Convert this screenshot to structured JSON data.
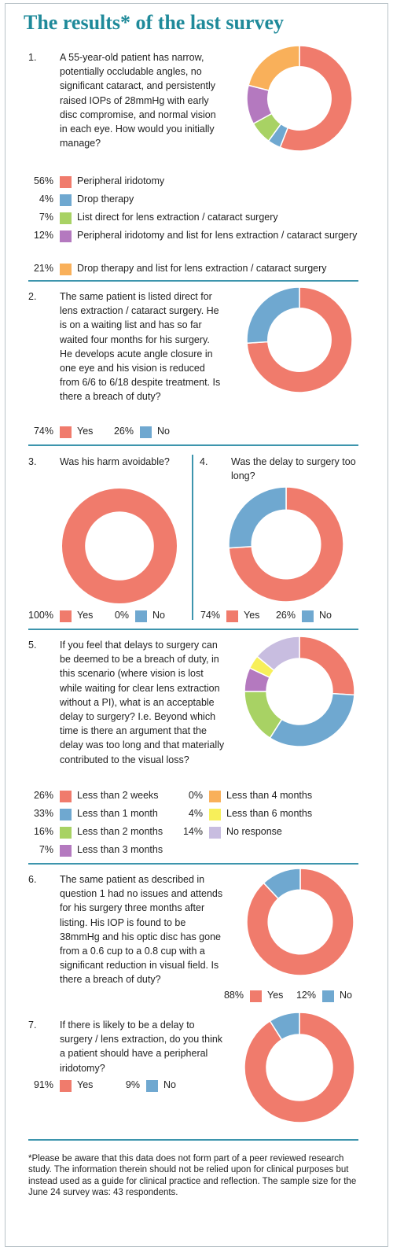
{
  "title": "The results* of the last survey",
  "colors": {
    "red": "#f07b6c",
    "blue": "#6fa8d0",
    "green": "#a8d264",
    "purple": "#b479bf",
    "orange": "#f9b05a",
    "yellow": "#f7ef5a",
    "lavender": "#c8bde0",
    "rule": "#3d95ad"
  },
  "questions": {
    "q1": {
      "num": "1.",
      "text": "A 55-year-old patient has narrow, potentially occludable angles, no significant cataract, and persistently raised IOPs of 28mmHg with early disc compromise, and normal vision in each eye. How would you initially manage?"
    },
    "q2": {
      "num": "2.",
      "text": "The same patient is listed direct for lens extraction / cataract surgery. He is on a waiting list and has so far waited four months for his surgery. He develops acute angle closure in one eye and his vision is reduced from 6/6 to 6/18 despite treatment. Is there a breach of duty?"
    },
    "q3": {
      "num": "3.",
      "text": "Was his harm avoidable?"
    },
    "q4": {
      "num": "4.",
      "text": "Was the delay to surgery too long?"
    },
    "q5": {
      "num": "5.",
      "text": "If you feel that delays to surgery can be deemed to be a breach of duty, in this scenario (where vision is lost while waiting for clear lens extraction without a PI), what is an acceptable delay to surgery? I.e. Beyond which time is there an argument that the delay was too long and that materially contributed to the visual loss?"
    },
    "q6": {
      "num": "6.",
      "text": "The same patient as described in question 1 had no issues and attends for his surgery three months after listing. His IOP is found to be 38mmHg and his optic disc has gone from a 0.6 cup to a 0.8 cup with a significant reduction in visual field. Is there a breach of duty?"
    },
    "q7": {
      "num": "7.",
      "text": "If there is likely to be a delay to surgery / lens extraction, do you think a patient should have a peripheral iridotomy?"
    }
  },
  "footnote": "*Please be aware that this data does not form part of a peer reviewed research study. The information therein should not be relied upon for clinical purposes but instead used as a guide for clinical practice and reflection. The sample size for the June 24 survey was: 43 respondents.",
  "chart_data": [
    {
      "id": "q1",
      "type": "pie",
      "donut": true,
      "categories": [
        "Peripheral iridotomy",
        "Drop therapy",
        "List direct for lens extraction / cataract surgery",
        "Peripheral iridotomy and list for lens extraction / cataract surgery",
        "Drop therapy and list for lens extraction / cataract surgery"
      ],
      "values": [
        56,
        4,
        7,
        12,
        21
      ],
      "labels": [
        "56%",
        "4%",
        "7%",
        "12%",
        "21%"
      ],
      "colors": [
        "#f07b6c",
        "#6fa8d0",
        "#a8d264",
        "#b479bf",
        "#f9b05a"
      ]
    },
    {
      "id": "q2",
      "type": "pie",
      "donut": true,
      "categories": [
        "Yes",
        "No"
      ],
      "values": [
        74,
        26
      ],
      "labels": [
        "74%",
        "26%"
      ],
      "colors": [
        "#f07b6c",
        "#6fa8d0"
      ]
    },
    {
      "id": "q3",
      "type": "pie",
      "donut": true,
      "categories": [
        "Yes",
        "No"
      ],
      "values": [
        100,
        0
      ],
      "labels": [
        "100%",
        "0%"
      ],
      "colors": [
        "#f07b6c",
        "#6fa8d0"
      ]
    },
    {
      "id": "q4",
      "type": "pie",
      "donut": true,
      "categories": [
        "Yes",
        "No"
      ],
      "values": [
        74,
        26
      ],
      "labels": [
        "74%",
        "26%"
      ],
      "colors": [
        "#f07b6c",
        "#6fa8d0"
      ]
    },
    {
      "id": "q5",
      "type": "pie",
      "donut": true,
      "categories": [
        "Less than 2 weeks",
        "Less than 1 month",
        "Less than 2 months",
        "Less than 3 months",
        "Less than 4 months",
        "Less than 6 months",
        "No response"
      ],
      "values": [
        26,
        33,
        16,
        7,
        0,
        4,
        14
      ],
      "labels": [
        "26%",
        "33%",
        "16%",
        "7%",
        "0%",
        "4%",
        "14%"
      ],
      "colors": [
        "#f07b6c",
        "#6fa8d0",
        "#a8d264",
        "#b479bf",
        "#f9b05a",
        "#f7ef5a",
        "#c8bde0"
      ]
    },
    {
      "id": "q6",
      "type": "pie",
      "donut": true,
      "categories": [
        "Yes",
        "No"
      ],
      "values": [
        88,
        12
      ],
      "labels": [
        "88%",
        "12%"
      ],
      "colors": [
        "#f07b6c",
        "#6fa8d0"
      ]
    },
    {
      "id": "q7",
      "type": "pie",
      "donut": true,
      "categories": [
        "Yes",
        "No"
      ],
      "values": [
        91,
        9
      ],
      "labels": [
        "91%",
        "9%"
      ],
      "colors": [
        "#f07b6c",
        "#6fa8d0"
      ]
    }
  ]
}
